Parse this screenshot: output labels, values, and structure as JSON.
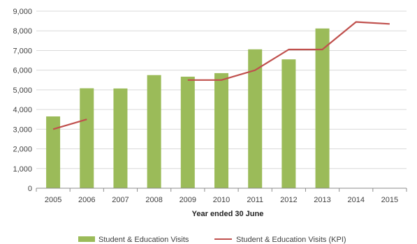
{
  "chart_data": {
    "type": "bar",
    "categories": [
      "2005",
      "2006",
      "2007",
      "2008",
      "2009",
      "2010",
      "2011",
      "2012",
      "2013",
      "2014",
      "2015"
    ],
    "series": [
      {
        "name": "Student & Education Visits",
        "kind": "bar",
        "color": "#9bbb59",
        "values": [
          3650,
          5080,
          5070,
          5750,
          5670,
          5850,
          7060,
          6550,
          8120,
          null,
          null
        ]
      },
      {
        "name": "Student & Education Visits (KPI)",
        "kind": "line",
        "color": "#c0504d",
        "values": [
          3000,
          3500,
          null,
          null,
          5500,
          5500,
          6000,
          7050,
          7050,
          8450,
          8350
        ]
      }
    ],
    "title": "",
    "xlabel": "Year ended 30 June",
    "ylabel": "",
    "ylim": [
      0,
      9000
    ],
    "yticks": [
      "0",
      "1,000",
      "2,000",
      "3,000",
      "4,000",
      "5,000",
      "6,000",
      "7,000",
      "8,000",
      "9,000"
    ],
    "grid": true,
    "legend_position": "bottom"
  }
}
